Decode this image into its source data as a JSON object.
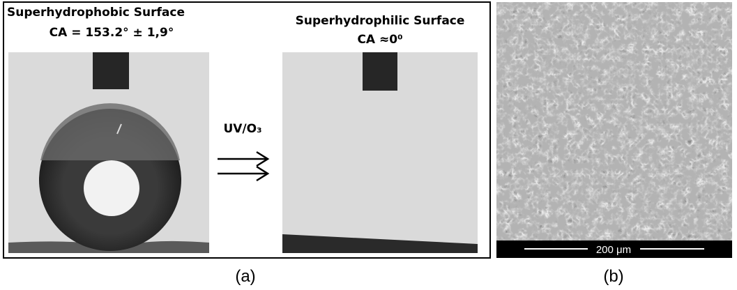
{
  "panel_a": {
    "left_title": "Superhydrophobic Surface",
    "left_subtitle": "CA = 153.2° ± 1,9°",
    "treatment": "UV/O₃",
    "right_title": "Superhydrophilic Surface",
    "right_subtitle": "CA ≈0⁰",
    "caption": "(a)"
  },
  "panel_b": {
    "scale_bar": "200 μm",
    "caption": "(b)"
  }
}
